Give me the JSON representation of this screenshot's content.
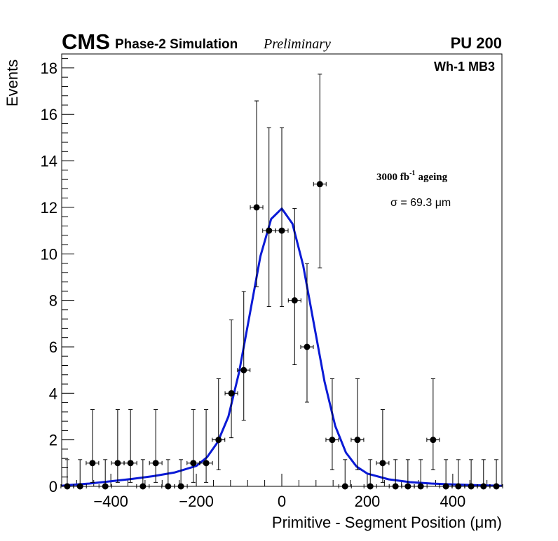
{
  "header": {
    "cms": "CMS",
    "phase": "Phase-2 Simulation",
    "preliminary": "Preliminary",
    "pileup": "PU 200"
  },
  "legend": {
    "region": "Wh-1 MB3",
    "ageing_value": "3000 fb",
    "ageing_exponent": "-1",
    "ageing_word": "ageing",
    "sigma_text": "σ = 69.3 μm"
  },
  "colors": {
    "fit_line": "#0a1ad6",
    "markers": "#000000",
    "frame": "#000000"
  },
  "chart_data": {
    "type": "scatter",
    "title": "",
    "xlabel": "Primitive - Segment Position (μm)",
    "ylabel": "Events",
    "xlim": [
      -515,
      515
    ],
    "ylim": [
      0,
      18.6
    ],
    "x_major_ticks": [
      -400,
      -200,
      0,
      200,
      400
    ],
    "x_tick_labels": [
      "−400",
      "−200",
      "0",
      "200",
      "400"
    ],
    "y_major_ticks": [
      0,
      2,
      4,
      6,
      8,
      10,
      12,
      14,
      16,
      18
    ],
    "y_tick_labels": [
      "0",
      "2",
      "4",
      "6",
      "8",
      "10",
      "12",
      "14",
      "16",
      "18"
    ],
    "bin_width": 29.5,
    "series": [
      {
        "name": "Simulation",
        "x": [
          -502,
          -472,
          -443,
          -413,
          -384,
          -354,
          -325,
          -295,
          -266,
          -236,
          -207,
          -177,
          -148,
          -118,
          -89,
          -59,
          -30,
          0,
          30,
          59,
          89,
          118,
          148,
          177,
          207,
          236,
          266,
          295,
          325,
          354,
          384,
          413,
          443,
          472,
          502
        ],
        "y": [
          0,
          0,
          1,
          0,
          1,
          1,
          0,
          1,
          0,
          0,
          1,
          1,
          2,
          4,
          5,
          12,
          11,
          11,
          8,
          6,
          13,
          2,
          0,
          2,
          0,
          1,
          0,
          0,
          0,
          2,
          0,
          0,
          0,
          0,
          0
        ],
        "err_up": [
          1.15,
          1.15,
          2.3,
          1.15,
          2.3,
          2.3,
          1.15,
          2.3,
          1.15,
          1.15,
          2.3,
          2.3,
          2.63,
          3.16,
          3.38,
          4.58,
          4.43,
          4.43,
          3.95,
          3.58,
          4.73,
          2.63,
          1.15,
          2.63,
          1.15,
          2.3,
          1.15,
          1.15,
          1.15,
          2.63,
          1.15,
          1.15,
          1.15,
          1.15,
          1.15
        ],
        "err_down": [
          0,
          0,
          0.83,
          0,
          0.83,
          0.83,
          0,
          0.83,
          0,
          0,
          0.83,
          0.83,
          1.29,
          1.91,
          2.16,
          3.41,
          3.27,
          3.27,
          2.77,
          2.38,
          3.6,
          1.29,
          0,
          1.29,
          0,
          0.83,
          0,
          0,
          0,
          1.29,
          0,
          0,
          0,
          0,
          0
        ]
      },
      {
        "name": "Fit",
        "type": "line",
        "x": [
          -515,
          -500,
          -450,
          -400,
          -350,
          -300,
          -250,
          -200,
          -175,
          -150,
          -125,
          -100,
          -75,
          -50,
          -25,
          0,
          25,
          50,
          75,
          100,
          125,
          150,
          175,
          200,
          250,
          300,
          350,
          400,
          450,
          500,
          515
        ],
        "y": [
          0.02,
          0.05,
          0.12,
          0.22,
          0.32,
          0.44,
          0.6,
          0.88,
          1.25,
          1.9,
          3.0,
          4.9,
          7.4,
          9.9,
          11.5,
          11.95,
          11.3,
          9.5,
          7.0,
          4.5,
          2.6,
          1.45,
          0.85,
          0.55,
          0.3,
          0.18,
          0.12,
          0.08,
          0.05,
          0.03,
          0.02
        ]
      }
    ]
  }
}
